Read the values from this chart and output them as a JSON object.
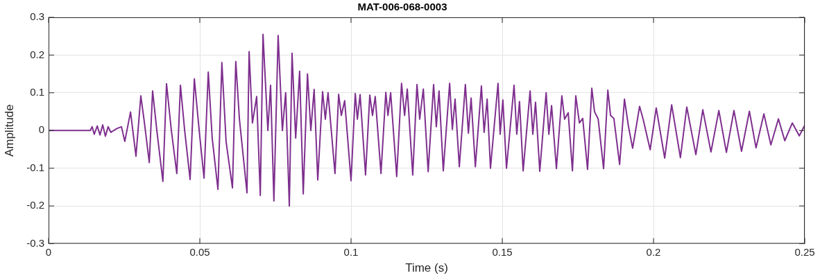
{
  "chart_data": {
    "type": "line",
    "title": "MAT-006-068-0003",
    "xlabel": "Time (s)",
    "ylabel": "Amplitude",
    "xlim": [
      0,
      0.25
    ],
    "xticks": [
      0,
      0.05,
      0.1,
      0.15,
      0.2,
      0.25
    ],
    "ylim": [
      -0.3,
      0.3
    ],
    "yticks": [
      -0.3,
      -0.2,
      -0.1,
      0,
      0.1,
      0.2,
      0.3
    ],
    "grid": true,
    "marker": "none",
    "line_style": "solid",
    "series": [
      {
        "color": "#7e2f8e",
        "x": [
          0,
          0.0138,
          0.0144,
          0.0151,
          0.0161,
          0.017,
          0.0179,
          0.0188,
          0.0197,
          0.0206,
          0.0225,
          0.0241,
          0.0252,
          0.0271,
          0.0289,
          0.0305,
          0.0317,
          0.0333,
          0.0344,
          0.0358,
          0.0378,
          0.039,
          0.0406,
          0.0424,
          0.0436,
          0.045,
          0.0468,
          0.0482,
          0.0498,
          0.0514,
          0.0528,
          0.0541,
          0.056,
          0.0573,
          0.0587,
          0.0608,
          0.0619,
          0.0631,
          0.0656,
          0.0663,
          0.0674,
          0.0688,
          0.07,
          0.0709,
          0.0725,
          0.0734,
          0.0745,
          0.0759,
          0.0773,
          0.0784,
          0.0796,
          0.0805,
          0.0817,
          0.083,
          0.0842,
          0.0856,
          0.0867,
          0.0878,
          0.089,
          0.0906,
          0.0915,
          0.0924,
          0.0947,
          0.0959,
          0.0968,
          0.0979,
          0.1,
          0.1014,
          0.1021,
          0.103,
          0.1048,
          0.1062,
          0.1071,
          0.108,
          0.1099,
          0.1115,
          0.1122,
          0.1131,
          0.1151,
          0.1167,
          0.1177,
          0.1186,
          0.1204,
          0.1218,
          0.1227,
          0.1239,
          0.1255,
          0.1273,
          0.1282,
          0.1291,
          0.1305,
          0.1326,
          0.1335,
          0.1344,
          0.1358,
          0.1378,
          0.1388,
          0.1397,
          0.1411,
          0.1431,
          0.144,
          0.145,
          0.1461,
          0.1486,
          0.1493,
          0.1502,
          0.1514,
          0.1539,
          0.1548,
          0.1557,
          0.1569,
          0.1592,
          0.1601,
          0.161,
          0.1624,
          0.1645,
          0.1654,
          0.1663,
          0.1679,
          0.1697,
          0.1706,
          0.1718,
          0.1732,
          0.1743,
          0.1755,
          0.1766,
          0.1782,
          0.1796,
          0.1805,
          0.1817,
          0.1835,
          0.1849,
          0.1858,
          0.1869,
          0.1888,
          0.1904,
          0.1917,
          0.1931,
          0.1954,
          0.1966,
          0.1989,
          0.2009,
          0.2037,
          0.206,
          0.2089,
          0.211,
          0.214,
          0.2163,
          0.219,
          0.2216,
          0.2241,
          0.2266,
          0.2291,
          0.2317,
          0.2339,
          0.2365,
          0.2388,
          0.2413,
          0.2434,
          0.2459,
          0.2482,
          0.25
        ],
        "values": [
          0,
          0,
          0.01,
          -0.01,
          0.012,
          -0.012,
          0.015,
          -0.015,
          0.01,
          -0.005,
          0.005,
          0.01,
          -0.029,
          0.049,
          -0.068,
          0.092,
          0.02,
          -0.085,
          0.105,
          0,
          -0.135,
          0.124,
          0,
          -0.114,
          0.12,
          0,
          -0.13,
          0.137,
          0,
          -0.126,
          0.155,
          -0.02,
          -0.156,
          0.18,
          -0.03,
          -0.152,
          0.183,
          0.03,
          -0.165,
          0.209,
          0.02,
          0.09,
          -0.172,
          0.255,
          0,
          0.12,
          -0.187,
          0.252,
          0,
          0.1,
          -0.2,
          0.205,
          -0.02,
          0.157,
          -0.168,
          0.15,
          0,
          0.109,
          -0.131,
          0.103,
          0.03,
          0.1,
          -0.114,
          0.096,
          0.04,
          0.079,
          -0.133,
          0.098,
          0.03,
          0.095,
          -0.118,
          0.094,
          0.04,
          0.09,
          -0.114,
          0.101,
          0.04,
          0.1,
          -0.122,
          0.125,
          0.04,
          0.11,
          -0.118,
          0.122,
          0.03,
          0.11,
          -0.109,
          0.122,
          0.01,
          0.105,
          -0.107,
          0.125,
          0.003,
          0.083,
          -0.096,
          0.122,
          -0.007,
          0.086,
          -0.096,
          0.118,
          -0.005,
          0.083,
          -0.1,
          0.125,
          -0.01,
          0.081,
          -0.1,
          0.12,
          -0.01,
          0.077,
          -0.107,
          0.105,
          -0.01,
          0.075,
          -0.108,
          0.1,
          -0.01,
          0.066,
          -0.101,
          0.092,
          0.03,
          0.047,
          -0.107,
          0.092,
          0.02,
          0.032,
          -0.103,
          0.112,
          0.05,
          0.031,
          -0.101,
          0.107,
          0.04,
          0.032,
          -0.09,
          0.083,
          0.012,
          -0.047,
          0.064,
          0.029,
          -0.051,
          0.06,
          -0.073,
          0.068,
          -0.072,
          0.062,
          -0.064,
          0.055,
          -0.057,
          0.053,
          -0.058,
          0.053,
          -0.055,
          0.051,
          -0.046,
          0.044,
          -0.038,
          0.031,
          -0.027,
          0.02,
          -0.014,
          0.014
        ]
      }
    ]
  }
}
